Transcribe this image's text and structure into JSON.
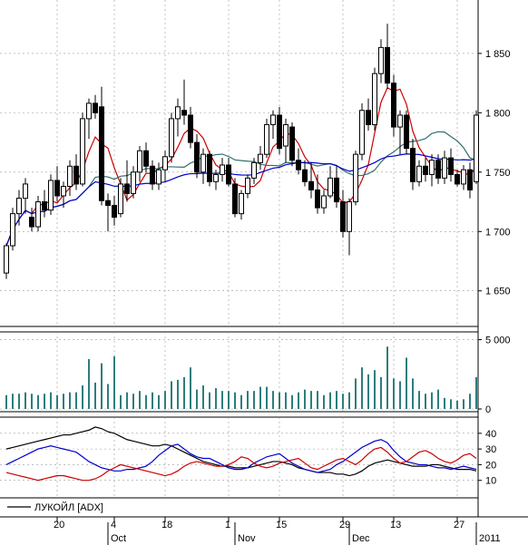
{
  "chart_data": [
    {
      "type": "candlestick",
      "name": "price",
      "yticks": [
        1650,
        1700,
        1750,
        1800,
        1850
      ],
      "ytick_labels": [
        "1 650",
        "1 700",
        "1 750",
        "1 800",
        "1 850"
      ],
      "ylim": [
        1620,
        1895
      ],
      "ohlc": [
        [
          1665,
          1690,
          1660,
          1688
        ],
        [
          1688,
          1720,
          1684,
          1715
        ],
        [
          1715,
          1735,
          1705,
          1728
        ],
        [
          1728,
          1745,
          1715,
          1740
        ],
        [
          1712,
          1720,
          1700,
          1704
        ],
        [
          1704,
          1730,
          1700,
          1725
        ],
        [
          1725,
          1735,
          1712,
          1718
        ],
        [
          1718,
          1748,
          1714,
          1743
        ],
        [
          1743,
          1755,
          1725,
          1730
        ],
        [
          1730,
          1742,
          1720,
          1738
        ],
        [
          1738,
          1760,
          1730,
          1755
        ],
        [
          1755,
          1765,
          1735,
          1740
        ],
        [
          1740,
          1800,
          1738,
          1795
        ],
        [
          1795,
          1812,
          1778,
          1808
        ],
        [
          1808,
          1815,
          1795,
          1800
        ],
        [
          1805,
          1822,
          1722,
          1726
        ],
        [
          1726,
          1732,
          1700,
          1722
        ],
        [
          1722,
          1730,
          1705,
          1712
        ],
        [
          1715,
          1745,
          1712,
          1740
        ],
        [
          1740,
          1760,
          1725,
          1732
        ],
        [
          1732,
          1755,
          1728,
          1750
        ],
        [
          1750,
          1772,
          1742,
          1768
        ],
        [
          1768,
          1775,
          1750,
          1755
        ],
        [
          1755,
          1760,
          1735,
          1740
        ],
        [
          1740,
          1758,
          1735,
          1752
        ],
        [
          1752,
          1768,
          1742,
          1763
        ],
        [
          1763,
          1800,
          1758,
          1795
        ],
        [
          1795,
          1812,
          1780,
          1805
        ],
        [
          1802,
          1828,
          1790,
          1798
        ],
        [
          1798,
          1805,
          1770,
          1775
        ],
        [
          1775,
          1782,
          1745,
          1750
        ],
        [
          1750,
          1770,
          1740,
          1765
        ],
        [
          1765,
          1768,
          1738,
          1742
        ],
        [
          1742,
          1752,
          1735,
          1748
        ],
        [
          1748,
          1762,
          1742,
          1756
        ],
        [
          1756,
          1762,
          1738,
          1740
        ],
        [
          1740,
          1745,
          1712,
          1715
        ],
        [
          1715,
          1735,
          1710,
          1732
        ],
        [
          1732,
          1748,
          1728,
          1745
        ],
        [
          1745,
          1762,
          1740,
          1758
        ],
        [
          1758,
          1772,
          1752,
          1765
        ],
        [
          1765,
          1795,
          1762,
          1790
        ],
        [
          1790,
          1802,
          1778,
          1798
        ],
        [
          1798,
          1805,
          1765,
          1770
        ],
        [
          1772,
          1795,
          1758,
          1790
        ],
        [
          1788,
          1792,
          1755,
          1760
        ],
        [
          1760,
          1770,
          1748,
          1752
        ],
        [
          1752,
          1760,
          1738,
          1742
        ],
        [
          1742,
          1758,
          1728,
          1735
        ],
        [
          1735,
          1748,
          1715,
          1720
        ],
        [
          1720,
          1735,
          1715,
          1730
        ],
        [
          1730,
          1755,
          1728,
          1745
        ],
        [
          1745,
          1755,
          1720,
          1725
        ],
        [
          1725,
          1735,
          1695,
          1700
        ],
        [
          1700,
          1728,
          1680,
          1725
        ],
        [
          1725,
          1768,
          1722,
          1765
        ],
        [
          1765,
          1808,
          1760,
          1802
        ],
        [
          1802,
          1812,
          1785,
          1790
        ],
        [
          1790,
          1838,
          1785,
          1833
        ],
        [
          1833,
          1862,
          1825,
          1855
        ],
        [
          1855,
          1875,
          1820,
          1825
        ],
        [
          1825,
          1832,
          1780,
          1788
        ],
        [
          1788,
          1802,
          1765,
          1798
        ],
        [
          1798,
          1802,
          1765,
          1770
        ],
        [
          1770,
          1778,
          1735,
          1742
        ],
        [
          1742,
          1760,
          1738,
          1755
        ],
        [
          1755,
          1762,
          1742,
          1748
        ],
        [
          1748,
          1765,
          1738,
          1760
        ],
        [
          1760,
          1765,
          1740,
          1745
        ],
        [
          1745,
          1768,
          1740,
          1762
        ],
        [
          1762,
          1770,
          1742,
          1748
        ],
        [
          1748,
          1752,
          1738,
          1740
        ],
        [
          1740,
          1756,
          1735,
          1752
        ],
        [
          1752,
          1758,
          1728,
          1735
        ],
        [
          1742,
          1802,
          1740,
          1798
        ]
      ]
    },
    {
      "type": "bar",
      "name": "volume",
      "yticks": [
        0,
        5000
      ],
      "ytick_labels": [
        "0",
        "5 000"
      ],
      "ylim": [
        0,
        5300
      ],
      "values": [
        1000,
        1100,
        1100,
        1200,
        1100,
        1000,
        1100,
        1200,
        1000,
        1100,
        1200,
        1200,
        1700,
        3600,
        1900,
        3300,
        1800,
        3800,
        1000,
        1200,
        1100,
        1300,
        1000,
        1200,
        1000,
        1300,
        2000,
        2100,
        2300,
        3000,
        1400,
        1700,
        1200,
        1500,
        1300,
        1300,
        1200,
        1000,
        1300,
        1300,
        1600,
        1600,
        1300,
        1200,
        1200,
        1000,
        1200,
        1400,
        1300,
        1300,
        1000,
        1200,
        1300,
        1100,
        1200,
        2200,
        3000,
        2500,
        2800,
        2300,
        4500,
        2200,
        2000,
        3700,
        2200,
        1300,
        1100,
        1200,
        1400,
        800,
        700,
        600,
        700,
        1100,
        2300
      ]
    },
    {
      "type": "line",
      "name": "ADX",
      "legend": "ЛУКОЙЛ [ADX]",
      "yticks": [
        10,
        20,
        30,
        40
      ],
      "ytick_labels": [
        "10",
        "20",
        "30",
        "40"
      ],
      "ylim": [
        0,
        48
      ],
      "series": [
        {
          "color": "#000000",
          "values": [
            30,
            31,
            32,
            33,
            34,
            35,
            36,
            37,
            38,
            39,
            39,
            40,
            41,
            42,
            44,
            43,
            41,
            40,
            38,
            36,
            35,
            34,
            33,
            32,
            32,
            33,
            32,
            30,
            28,
            26,
            24,
            22,
            21,
            20,
            19,
            19,
            18,
            18,
            18,
            19,
            20,
            21,
            22,
            22,
            21,
            20,
            18,
            17,
            16,
            15,
            15,
            15,
            14,
            14,
            13,
            14,
            16,
            19,
            21,
            22,
            23,
            22,
            21,
            20,
            19,
            19,
            19,
            20,
            20,
            19,
            18,
            17,
            17,
            17,
            16
          ]
        },
        {
          "color": "#0000cc",
          "values": [
            20,
            22,
            24,
            26,
            28,
            30,
            31,
            32,
            31,
            30,
            29,
            28,
            25,
            22,
            20,
            18,
            17,
            16,
            16,
            17,
            17,
            18,
            19,
            22,
            26,
            29,
            32,
            33,
            30,
            27,
            25,
            24,
            24,
            22,
            20,
            18,
            17,
            17,
            18,
            21,
            23,
            25,
            26,
            27,
            24,
            21,
            19,
            17,
            16,
            15,
            16,
            17,
            20,
            22,
            25,
            28,
            31,
            33,
            35,
            36,
            34,
            29,
            25,
            22,
            21,
            20,
            20,
            19,
            18,
            18,
            17,
            18,
            19,
            18,
            17
          ]
        },
        {
          "color": "#cc0000",
          "values": [
            15,
            14,
            13,
            12,
            11,
            10,
            11,
            12,
            13,
            13,
            12,
            11,
            10,
            10,
            11,
            13,
            16,
            18,
            20,
            19,
            18,
            17,
            16,
            15,
            14,
            13,
            14,
            16,
            19,
            21,
            22,
            21,
            20,
            19,
            19,
            20,
            22,
            25,
            24,
            21,
            19,
            18,
            19,
            21,
            22,
            23,
            24,
            21,
            18,
            17,
            19,
            21,
            23,
            24,
            22,
            20,
            23,
            27,
            30,
            31,
            28,
            24,
            21,
            22,
            25,
            28,
            29,
            27,
            24,
            22,
            21,
            23,
            26,
            27,
            24
          ]
        }
      ]
    }
  ],
  "x_axis": {
    "day_labels": [
      "20",
      "4",
      "18",
      "1",
      "15",
      "29",
      "13",
      "27"
    ],
    "month_labels": [
      "Oct",
      "Nov",
      "Dec",
      "2011"
    ]
  }
}
